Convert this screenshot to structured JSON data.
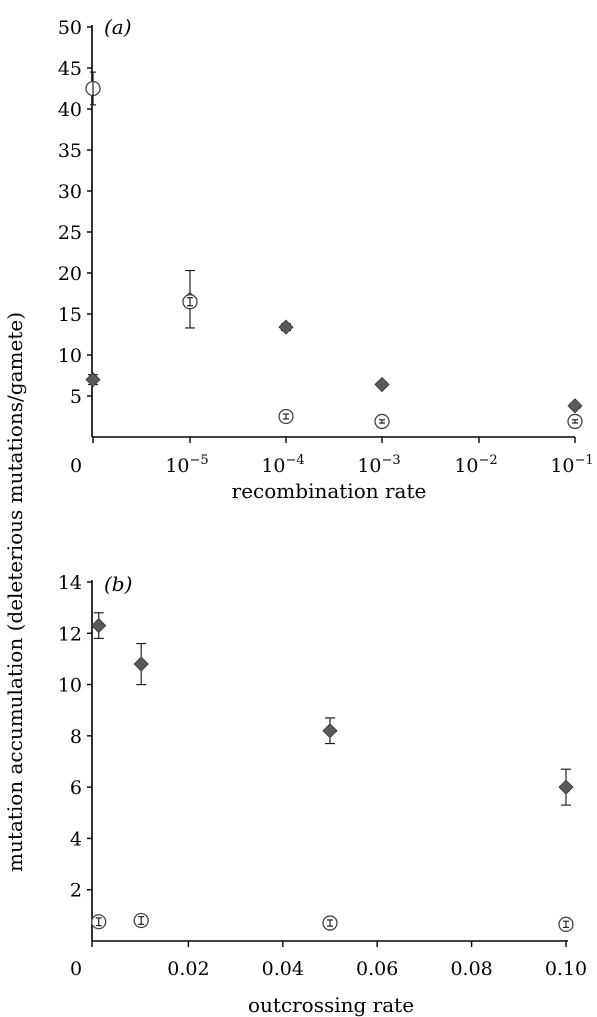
{
  "ylabel_shared": "mutation accumulation (deleterious mutations/gamete)",
  "chart_data": [
    {
      "type": "scatter",
      "panel_label": "(a)",
      "xlabel": "recombination rate",
      "x_categories": [
        "0",
        "10^-5",
        "10^-4",
        "10^-3",
        "10^-2",
        "10^-1"
      ],
      "x_tick_labels": [
        {
          "base": "0",
          "exp": ""
        },
        {
          "base": "10",
          "exp": "−5"
        },
        {
          "base": "10",
          "exp": "−4"
        },
        {
          "base": "10",
          "exp": "−3"
        },
        {
          "base": "10",
          "exp": "−2"
        },
        {
          "base": "10",
          "exp": "−1"
        }
      ],
      "ylim": [
        0,
        50
      ],
      "y_ticks": [
        5,
        10,
        15,
        20,
        25,
        30,
        35,
        40,
        45,
        50
      ],
      "y_zero_label": "0",
      "series": [
        {
          "marker": "diamond",
          "color": "#5a5a5a",
          "points": [
            {
              "x": "0",
              "y": 7.0,
              "err": 0.6
            },
            {
              "x": "10^-5",
              "y": 16.8,
              "err": 3.5
            },
            {
              "x": "10^-4",
              "y": 13.4,
              "err": 0.4
            },
            {
              "x": "10^-3",
              "y": 6.4,
              "err": 0.3
            },
            {
              "x": "10^-1",
              "y": 3.8,
              "err": 0.3
            }
          ]
        },
        {
          "marker": "open-circle",
          "color": "#ffffff",
          "points": [
            {
              "x": "0",
              "y": 42.5,
              "err": 2.0
            },
            {
              "x": "10^-5",
              "y": 16.5,
              "err": 0.5
            },
            {
              "x": "10^-4",
              "y": 2.5,
              "err": 0.3
            },
            {
              "x": "10^-3",
              "y": 1.9,
              "err": 0.2
            },
            {
              "x": "10^-1",
              "y": 1.9,
              "err": 0.2
            }
          ]
        }
      ]
    },
    {
      "type": "scatter",
      "panel_label": "(b)",
      "xlabel": "outcrossing rate",
      "x_ticks": [
        0.02,
        0.04,
        0.06,
        0.08,
        0.1
      ],
      "x_tick_text": [
        "0.02",
        "0.04",
        "0.06",
        "0.08",
        "0.10"
      ],
      "x_zero_label": "0",
      "xlim": [
        0,
        0.1
      ],
      "ylim": [
        0,
        14
      ],
      "y_ticks": [
        2,
        4,
        6,
        8,
        10,
        12,
        14
      ],
      "series": [
        {
          "marker": "diamond",
          "color": "#5a5a5a",
          "points": [
            {
              "x": 0.001,
              "y": 12.3,
              "err": 0.5
            },
            {
              "x": 0.01,
              "y": 10.8,
              "err": 0.8
            },
            {
              "x": 0.05,
              "y": 8.2,
              "err": 0.5
            },
            {
              "x": 0.1,
              "y": 6.0,
              "err": 0.7
            }
          ]
        },
        {
          "marker": "open-circle",
          "color": "#ffffff",
          "points": [
            {
              "x": 0.001,
              "y": 0.75,
              "err": 0.15
            },
            {
              "x": 0.01,
              "y": 0.8,
              "err": 0.15
            },
            {
              "x": 0.05,
              "y": 0.7,
              "err": 0.12
            },
            {
              "x": 0.1,
              "y": 0.65,
              "err": 0.12
            }
          ]
        }
      ]
    }
  ]
}
